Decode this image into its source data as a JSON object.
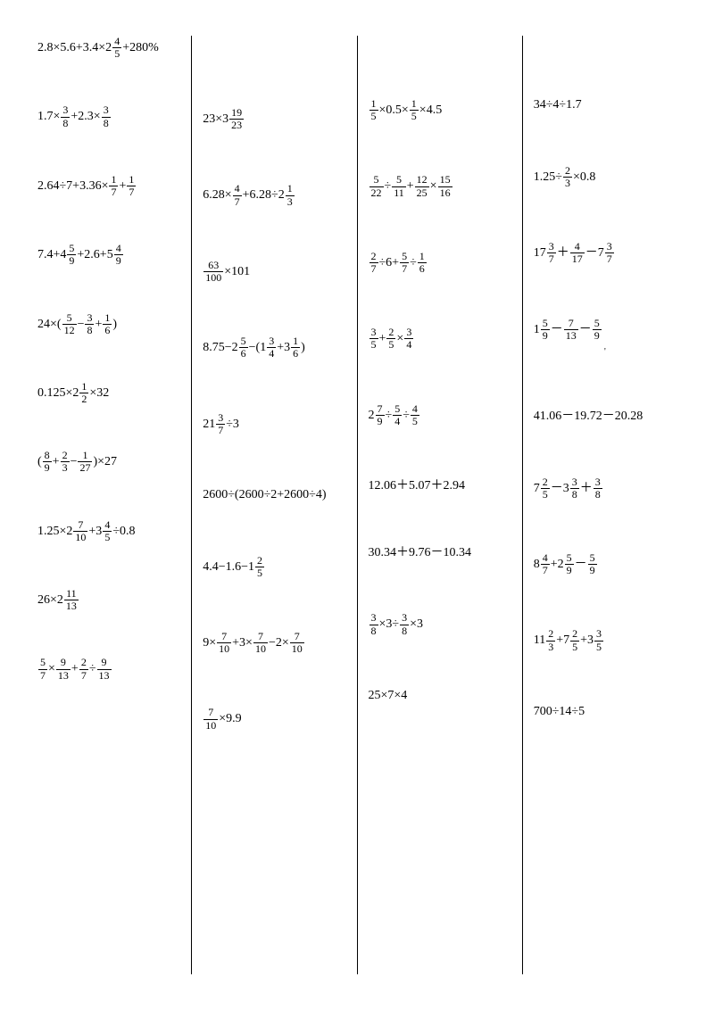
{
  "columns": [
    [
      {
        "html": "2.8×5.6+3.4×2<frac>4|5</frac>+280%"
      },
      {
        "html": "1.7×<frac>3|8</frac>+2.3×<frac>3|8</frac>"
      },
      {
        "html": "2.64÷7+3.36×<frac>1|7</frac>+<frac>1|7</frac>"
      },
      {
        "html": "7.4+4<frac>5|9</frac>+2.6+5<frac>4|9</frac>"
      },
      {
        "html": "24×(<frac>5|12</frac>−<frac>3|8</frac>+<frac>1|6</frac>)"
      },
      {
        "html": "0.125×2<frac>1|2</frac>×32"
      },
      {
        "html": "(<frac>8|9</frac>+<frac>2|3</frac>−<frac>1|27</frac>)×27"
      },
      {
        "html": "1.25×2<frac>7|10</frac>+3<frac>4|5</frac>÷0.8"
      },
      {
        "html": "26×2<frac>11|13</frac>"
      },
      {
        "html": "<frac>5|7</frac>×<frac>9|13</frac>+<frac>2|7</frac>÷<frac>9|13</frac>"
      }
    ],
    [
      {
        "html": "23×3<frac>19|23</frac>"
      },
      {
        "html": "6.28×<frac>4|7</frac>+6.28÷2<frac>1|3</frac>"
      },
      {
        "html": "<frac>63|100</frac>×101"
      },
      {
        "html": "8.75−2<frac>5|6</frac>−(1<frac>3|4</frac>+3<frac>1|6</frac>)"
      },
      {
        "html": "21<frac>3|7</frac>÷3"
      },
      {
        "html": "2600÷(2600÷2+2600÷4)"
      },
      {
        "html": "4.4−1.6−1<frac>2|5</frac>"
      },
      {
        "html": "9×<frac>7|10</frac>+3×<frac>7|10</frac>−2×<frac>7|10</frac>"
      },
      {
        "html": "<frac>7|10</frac>×9.9"
      }
    ],
    [
      {
        "html": "<frac>1|5</frac>×0.5×<frac>1|5</frac>×4.5"
      },
      {
        "html": "<frac>5|22</frac>÷<frac>5|11</frac>+<frac>12|25</frac>×<frac>15|16</frac>"
      },
      {
        "html": "<frac>2|7</frac>÷6+<frac>5|7</frac>÷<frac>1|6</frac>"
      },
      {
        "html": "<frac>3|5</frac>+<frac>2|5</frac>×<frac>3|4</frac>"
      },
      {
        "html": "2<frac>7|9</frac>÷<frac>5|4</frac>÷<frac>4|5</frac>"
      },
      {
        "html": "12.06＋5.07＋2.94"
      },
      {
        "html": "30.34＋9.76－10.34"
      },
      {
        "html": "<frac>3|8</frac>×3÷<frac>3|8</frac>×3"
      },
      {
        "html": "25×7×4"
      }
    ],
    [
      {
        "html": "34÷4÷1.7"
      },
      {
        "html": "1.25÷<frac>2|3</frac>×0.8"
      },
      {
        "html": "17<frac>3|7</frac>＋<frac>4|17</frac>－7<frac>3|7</frac>"
      },
      {
        "html": "1<frac>5|9</frac>－<frac>7|13</frac>－<frac>5|9</frac>",
        "trailing_comma": true
      },
      {
        "html": "41.06－19.72－20.28"
      },
      {
        "html": "7<frac>2|5</frac>－3<frac>3|8</frac>＋<frac>3|8</frac>"
      },
      {
        "html": "8<frac>4|7</frac>+2<frac>5|9</frac>－<frac>5|9</frac>"
      },
      {
        "html": "11<frac>2|3</frac>+7<frac>2|5</frac>+3<frac>3|5</frac>"
      },
      {
        "html": "700÷14÷5"
      }
    ]
  ]
}
